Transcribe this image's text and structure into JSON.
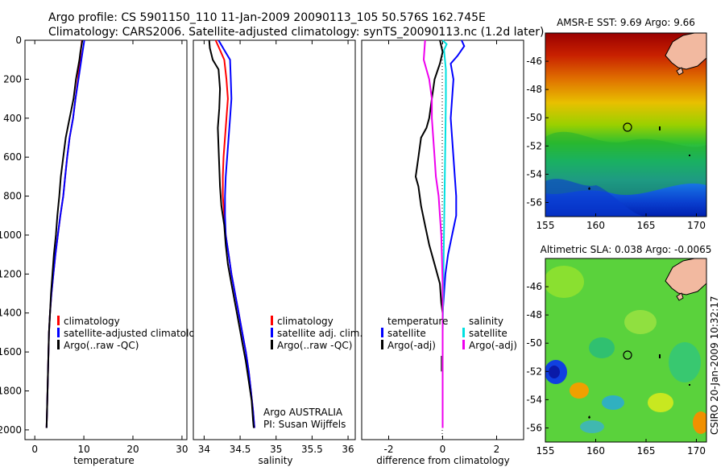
{
  "header": {
    "line1": "Argo profile: CS 5901150_110 11-Jan-2009 20090113_105 50.576S 162.745E",
    "line2": "Climatology: CARS2006. Satellite-adjusted climatology: synTS_20090113.nc (1.2d later)"
  },
  "credits": {
    "argo": "Argo AUSTRALIA",
    "pi": "PI: Susan Wijffels",
    "csiro": "CSIRO 20-Jan-2009 10:32:17"
  },
  "colors": {
    "climatology": "#ff0000",
    "satellite": "#0000ff",
    "argo": "#000000",
    "satellite_salinity": "#00e0e0",
    "argo_salinity_diff": "#ee00ee",
    "land": "#f2b9a0"
  },
  "chart_data": [
    {
      "type": "line",
      "xlabel": "temperature",
      "ylim": [
        2050,
        0
      ],
      "xlim": [
        -2,
        31
      ],
      "xticks": [
        "0",
        "10",
        "20",
        "30"
      ],
      "yticks": [
        "0",
        "200",
        "400",
        "600",
        "800",
        "1000",
        "1200",
        "1400",
        "1600",
        "1800",
        "2000"
      ],
      "legend": {
        "placement": "lower-middle",
        "entries": [
          "climatology",
          "satellite-adjusted climatology",
          "Argo(..raw -QC)"
        ]
      },
      "series": [
        {
          "name": "climatology",
          "color": "#ff0000",
          "points": [
            [
              9.6,
              0
            ],
            [
              9.2,
              100
            ],
            [
              8.8,
              200
            ],
            [
              8.3,
              300
            ],
            [
              7.8,
              400
            ],
            [
              7.1,
              500
            ],
            [
              6.6,
              600
            ],
            [
              6.2,
              700
            ],
            [
              5.8,
              800
            ],
            [
              5.2,
              900
            ],
            [
              4.7,
              1000
            ],
            [
              4.2,
              1100
            ],
            [
              3.8,
              1200
            ],
            [
              3.4,
              1300
            ],
            [
              3.1,
              1400
            ],
            [
              2.9,
              1500
            ],
            [
              2.8,
              1600
            ],
            [
              2.7,
              1700
            ],
            [
              2.6,
              1800
            ],
            [
              2.5,
              1900
            ],
            [
              2.4,
              1990
            ]
          ]
        },
        {
          "name": "satellite-adjusted climatology",
          "color": "#0000ff",
          "points": [
            [
              10.1,
              0
            ],
            [
              9.5,
              100
            ],
            [
              8.9,
              200
            ],
            [
              8.3,
              300
            ],
            [
              7.8,
              400
            ],
            [
              7.1,
              500
            ],
            [
              6.6,
              600
            ],
            [
              6.2,
              700
            ],
            [
              5.8,
              800
            ],
            [
              5.2,
              900
            ],
            [
              4.7,
              1000
            ],
            [
              4.2,
              1100
            ],
            [
              3.8,
              1200
            ],
            [
              3.4,
              1300
            ],
            [
              3.1,
              1400
            ],
            [
              2.9,
              1500
            ],
            [
              2.8,
              1600
            ],
            [
              2.7,
              1700
            ],
            [
              2.6,
              1800
            ],
            [
              2.5,
              1900
            ],
            [
              2.4,
              1990
            ]
          ]
        },
        {
          "name": "Argo(..raw -QC)",
          "color": "#000000",
          "points": [
            [
              9.7,
              0
            ],
            [
              9.3,
              60
            ],
            [
              9.1,
              100
            ],
            [
              8.4,
              200
            ],
            [
              7.9,
              300
            ],
            [
              7.1,
              400
            ],
            [
              6.3,
              500
            ],
            [
              5.8,
              600
            ],
            [
              5.3,
              700
            ],
            [
              5.0,
              800
            ],
            [
              4.6,
              900
            ],
            [
              4.3,
              1000
            ],
            [
              3.9,
              1100
            ],
            [
              3.6,
              1200
            ],
            [
              3.3,
              1300
            ],
            [
              3.1,
              1400
            ],
            [
              2.9,
              1500
            ],
            [
              2.8,
              1600
            ],
            [
              2.7,
              1700
            ],
            [
              2.6,
              1800
            ],
            [
              2.5,
              1900
            ],
            [
              2.4,
              1990
            ]
          ]
        }
      ]
    },
    {
      "type": "line",
      "xlabel": "salinity",
      "ylim": [
        2050,
        0
      ],
      "xlim": [
        33.85,
        36.1
      ],
      "xticks": [
        "34",
        "34.5",
        "35",
        "35.5",
        "36"
      ],
      "legend": {
        "placement": "lower-middle",
        "entries": [
          "climatology",
          "satellite adj. clim.",
          "Argo(..raw -QC)"
        ]
      },
      "series": [
        {
          "name": "climatology",
          "color": "#ff0000",
          "points": [
            [
              34.16,
              0
            ],
            [
              34.22,
              50
            ],
            [
              34.28,
              100
            ],
            [
              34.31,
              200
            ],
            [
              34.33,
              300
            ],
            [
              34.31,
              400
            ],
            [
              34.29,
              500
            ],
            [
              34.27,
              600
            ],
            [
              34.26,
              700
            ],
            [
              34.26,
              800
            ],
            [
              34.28,
              900
            ],
            [
              34.3,
              1000
            ],
            [
              34.34,
              1100
            ],
            [
              34.38,
              1200
            ],
            [
              34.43,
              1300
            ],
            [
              34.48,
              1400
            ],
            [
              34.53,
              1500
            ],
            [
              34.58,
              1600
            ],
            [
              34.62,
              1700
            ],
            [
              34.65,
              1800
            ],
            [
              34.68,
              1900
            ],
            [
              34.7,
              1990
            ]
          ]
        },
        {
          "name": "satellite adj. clim.",
          "color": "#0000ff",
          "points": [
            [
              34.2,
              0
            ],
            [
              34.28,
              50
            ],
            [
              34.36,
              100
            ],
            [
              34.37,
              200
            ],
            [
              34.38,
              300
            ],
            [
              34.36,
              400
            ],
            [
              34.34,
              500
            ],
            [
              34.32,
              600
            ],
            [
              34.3,
              700
            ],
            [
              34.29,
              800
            ],
            [
              34.29,
              900
            ],
            [
              34.3,
              1000
            ],
            [
              34.34,
              1100
            ],
            [
              34.38,
              1200
            ],
            [
              34.43,
              1300
            ],
            [
              34.48,
              1400
            ],
            [
              34.53,
              1500
            ],
            [
              34.58,
              1600
            ],
            [
              34.62,
              1700
            ],
            [
              34.65,
              1800
            ],
            [
              34.68,
              1900
            ],
            [
              34.7,
              1990
            ]
          ]
        },
        {
          "name": "Argo(..raw -QC)",
          "color": "#000000",
          "points": [
            [
              34.07,
              0
            ],
            [
              34.08,
              40
            ],
            [
              34.12,
              100
            ],
            [
              34.2,
              150
            ],
            [
              34.22,
              250
            ],
            [
              34.21,
              350
            ],
            [
              34.19,
              450
            ],
            [
              34.2,
              550
            ],
            [
              34.21,
              650
            ],
            [
              34.22,
              750
            ],
            [
              34.24,
              850
            ],
            [
              34.28,
              950
            ],
            [
              34.3,
              1050
            ],
            [
              34.33,
              1150
            ],
            [
              34.38,
              1250
            ],
            [
              34.43,
              1350
            ],
            [
              34.48,
              1450
            ],
            [
              34.53,
              1550
            ],
            [
              34.58,
              1650
            ],
            [
              34.62,
              1750
            ],
            [
              34.66,
              1850
            ],
            [
              34.68,
              1950
            ],
            [
              34.69,
              1990
            ]
          ]
        }
      ]
    },
    {
      "type": "line",
      "xlabel": "difference from climatology",
      "ylim": [
        2050,
        0
      ],
      "xlim": [
        -3,
        3
      ],
      "xticks": [
        "-2",
        "0",
        "2"
      ],
      "legend": {
        "placement": "lower-middle",
        "headers": [
          "temperature",
          "salinity"
        ],
        "entries": [
          "satellite",
          "Argo(-adj)",
          "satellite",
          "Argo(-adj)"
        ]
      },
      "series": [
        {
          "name": "satellite",
          "group": "temperature",
          "color": "#0000ff",
          "points": [
            [
              0.7,
              0
            ],
            [
              0.8,
              30
            ],
            [
              0.55,
              80
            ],
            [
              0.3,
              120
            ],
            [
              0.4,
              200
            ],
            [
              0.35,
              300
            ],
            [
              0.3,
              400
            ],
            [
              0.35,
              500
            ],
            [
              0.4,
              600
            ],
            [
              0.45,
              700
            ],
            [
              0.5,
              800
            ],
            [
              0.5,
              900
            ],
            [
              0.35,
              1000
            ],
            [
              0.2,
              1100
            ],
            [
              0.1,
              1200
            ],
            [
              0.05,
              1300
            ],
            [
              0.0,
              1400
            ],
            [
              0.0,
              1990
            ]
          ]
        },
        {
          "name": "Argo(-adj)",
          "group": "temperature",
          "color": "#000000",
          "points": [
            [
              -0.1,
              0
            ],
            [
              0.0,
              60
            ],
            [
              -0.1,
              120
            ],
            [
              -0.3,
              200
            ],
            [
              -0.4,
              300
            ],
            [
              -0.5,
              400
            ],
            [
              -0.6,
              450
            ],
            [
              -0.8,
              500
            ],
            [
              -0.9,
              600
            ],
            [
              -1.0,
              700
            ],
            [
              -0.9,
              750
            ],
            [
              -0.8,
              850
            ],
            [
              -0.65,
              950
            ],
            [
              -0.5,
              1050
            ],
            [
              -0.3,
              1150
            ],
            [
              -0.1,
              1250
            ],
            [
              -0.05,
              1350
            ],
            [
              0.0,
              1400
            ],
            [
              0.0,
              1990
            ]
          ]
        },
        {
          "name": "satellite",
          "group": "salinity",
          "color": "#00e0e0",
          "points": [
            [
              0.0,
              0
            ],
            [
              0.15,
              20
            ],
            [
              0.05,
              50
            ],
            [
              0.12,
              150
            ],
            [
              0.12,
              300
            ],
            [
              0.1,
              500
            ],
            [
              0.08,
              700
            ],
            [
              0.06,
              900
            ],
            [
              0.04,
              1100
            ],
            [
              0.02,
              1300
            ],
            [
              0.0,
              1500
            ],
            [
              0.0,
              1990
            ]
          ]
        },
        {
          "name": "Argo(-adj)",
          "group": "salinity",
          "color": "#ee00ee",
          "points": [
            [
              -0.65,
              0
            ],
            [
              -0.7,
              100
            ],
            [
              -0.5,
              200
            ],
            [
              -0.4,
              300
            ],
            [
              -0.4,
              400
            ],
            [
              -0.35,
              500
            ],
            [
              -0.3,
              600
            ],
            [
              -0.25,
              700
            ],
            [
              -0.15,
              800
            ],
            [
              -0.1,
              900
            ],
            [
              -0.05,
              1000
            ],
            [
              -0.03,
              1100
            ],
            [
              0.0,
              1250
            ],
            [
              0.0,
              1990
            ]
          ]
        }
      ]
    },
    {
      "type": "heatmap",
      "title": "AMSR-E SST: 9.69 Argo: 9.66",
      "xlim": [
        155,
        171
      ],
      "ylim": [
        -57,
        -44
      ],
      "xticks": [
        "155",
        "160",
        "165",
        "170"
      ],
      "yticks": [
        "-46",
        "-48",
        "-50",
        "-52",
        "-54",
        "-56"
      ],
      "marker": {
        "lon": 162.745,
        "lat": -50.576
      }
    },
    {
      "type": "heatmap",
      "title": "Altimetric SLA: 0.038 Argo: -0.0065",
      "xlim": [
        155,
        171
      ],
      "ylim": [
        -57,
        -44
      ],
      "xticks": [
        "155",
        "160",
        "165",
        "170"
      ],
      "yticks": [
        "-46",
        "-48",
        "-50",
        "-52",
        "-54",
        "-56"
      ],
      "marker": {
        "lon": 162.745,
        "lat": -50.576
      }
    }
  ]
}
